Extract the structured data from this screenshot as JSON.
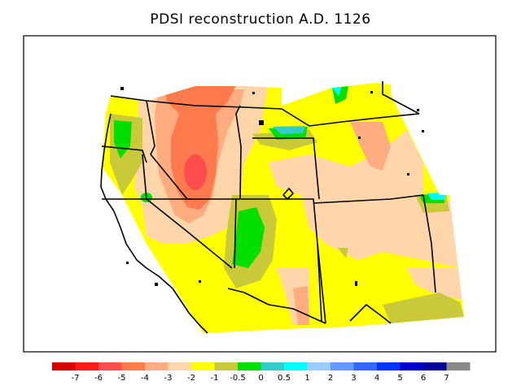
{
  "title": "PDSI reconstruction A.D. 1126",
  "legend": {
    "labels": [
      "-7",
      "-6",
      "-5",
      "-4",
      "-3",
      "-2",
      "-1",
      "-0.5",
      "0",
      "0.5",
      "1",
      "2",
      "3",
      "4",
      "5",
      "6",
      "7"
    ],
    "colors": [
      "#d50000",
      "#ff1a1a",
      "#ff4d4d",
      "#ff7a4d",
      "#ffad80",
      "#ffd6aa",
      "#ffff00",
      "#c9c93a",
      "#00e000",
      "#33cccc",
      "#00ffff",
      "#99ccff",
      "#6699ff",
      "#3366ff",
      "#0033ff",
      "#0000cc",
      "#00009a",
      "#888888"
    ]
  },
  "colors": {
    "frame": "#000000",
    "background": "#ffffff"
  }
}
